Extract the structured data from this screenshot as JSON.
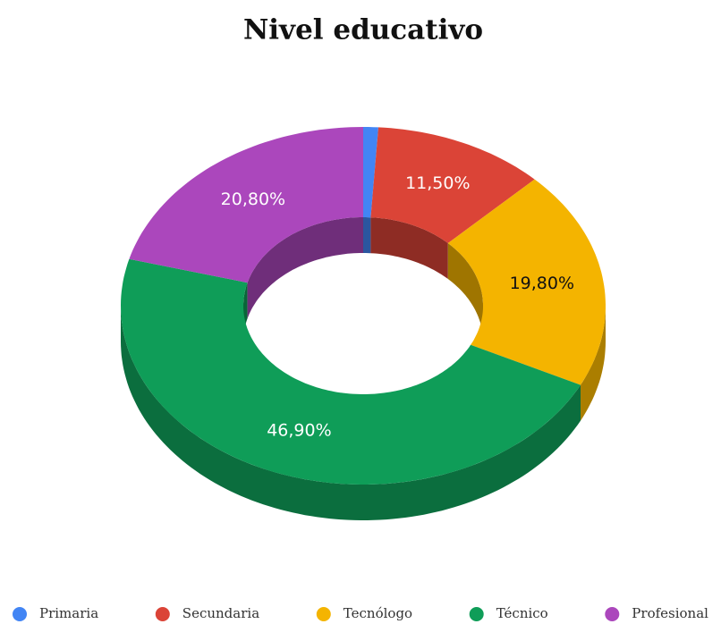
{
  "chart_data": {
    "type": "pie3d-donut",
    "title": "Nivel educativo",
    "categories": [
      "Primaria",
      "Secundaria",
      "Tecnólogo",
      "Técnico",
      "Profesional"
    ],
    "values": [
      1.0,
      11.5,
      19.8,
      46.9,
      20.8
    ],
    "value_labels": [
      null,
      "11,50%",
      "19,80%",
      "46,90%",
      "20,80%"
    ],
    "colors": [
      "#4285f4",
      "#db4437",
      "#f4b400",
      "#0f9d58",
      "#ab47bc"
    ],
    "legend": "bottom"
  }
}
